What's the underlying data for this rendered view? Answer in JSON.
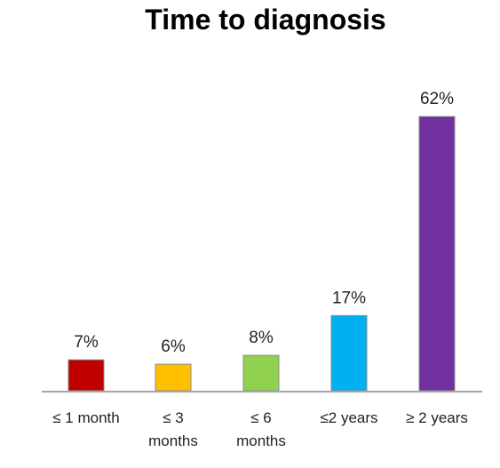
{
  "chart_data": {
    "type": "bar",
    "title": "Time to diagnosis",
    "xlabel": "",
    "ylabel": "",
    "ylim": [
      0,
      70
    ],
    "grid": false,
    "legend": "none",
    "categories": [
      [
        "≤ 1 month"
      ],
      [
        "≤ 3",
        "months"
      ],
      [
        "≤ 6",
        "months"
      ],
      [
        "≤2 years"
      ],
      [
        "≥ 2 years"
      ]
    ],
    "values": [
      7,
      6,
      8,
      17,
      62
    ],
    "data_labels": [
      "7%",
      "6%",
      "8%",
      "17%",
      "62%"
    ],
    "colors": [
      "#c00000",
      "#ffc000",
      "#92d050",
      "#00b0f0",
      "#7030a0"
    ]
  }
}
